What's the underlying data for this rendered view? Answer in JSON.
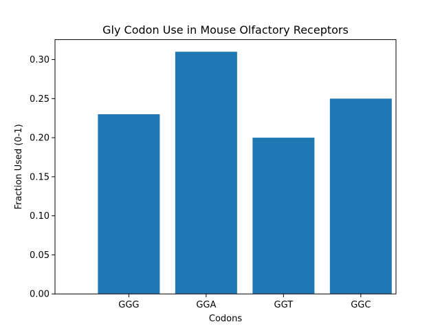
{
  "chart_data": {
    "type": "bar",
    "title": "Gly Codon Use in Mouse Olfactory Receptors",
    "xlabel": "Codons",
    "ylabel": "Fraction Used (0-1)",
    "categories": [
      "GGG",
      "GGA",
      "GGT",
      "GGC"
    ],
    "values": [
      0.23,
      0.31,
      0.2,
      0.25
    ],
    "ylim": [
      0,
      0.3255
    ],
    "yticks": [
      0.0,
      0.05,
      0.1,
      0.15,
      0.2,
      0.25,
      0.3
    ],
    "ytick_labels": [
      "0.00",
      "0.05",
      "0.10",
      "0.15",
      "0.20",
      "0.25",
      "0.30"
    ],
    "grid": false,
    "bar_color": "#1f77b4"
  }
}
